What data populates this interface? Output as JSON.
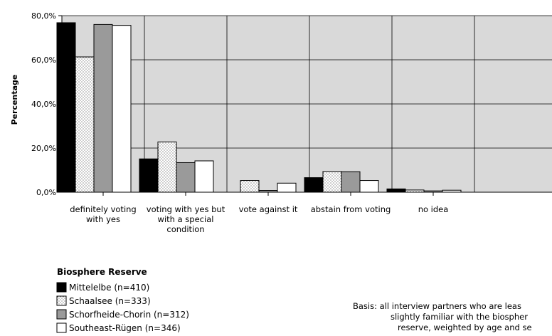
{
  "chart_data": {
    "type": "bar",
    "ylabel": "Percentage",
    "ylim": [
      0,
      80
    ],
    "yticks": [
      "0,0%",
      "20,0%",
      "40,0%",
      "60,0%",
      "80,0%"
    ],
    "grid": true,
    "categories": [
      [
        "definitely voting",
        "with yes"
      ],
      [
        "voting with yes but",
        "with a special",
        "condition"
      ],
      [
        "vote against it"
      ],
      [
        "abstain from voting"
      ],
      [
        "no idea"
      ]
    ],
    "series": [
      {
        "name": "Mittelelbe (n=410)",
        "values": [
          76.8,
          15.1,
          0.0,
          6.6,
          1.5
        ],
        "fill": "#000000",
        "pattern": "solid"
      },
      {
        "name": "Schaalsee (n=333)",
        "values": [
          61.3,
          22.8,
          5.3,
          9.4,
          1.0
        ],
        "fill": "#ffffff",
        "pattern": "dots"
      },
      {
        "name": "Schorfheide-Chorin (n=312)",
        "values": [
          76.0,
          13.4,
          0.8,
          9.3,
          0.6
        ],
        "fill": "#9a9a9a",
        "pattern": "solid"
      },
      {
        "name": "Southeast-Rügen (n=346)",
        "values": [
          75.6,
          14.2,
          4.1,
          5.3,
          0.9
        ],
        "fill": "#ffffff",
        "pattern": "solid"
      }
    ],
    "legend": {
      "title": "Biosphere Reserve",
      "position": "bottom-left"
    },
    "plot_background": "#d9d9d9",
    "note": [
      "Basis:  all interview partners who are leas",
      "slightly familiar with the biospher",
      "reserve, weighted by age and se"
    ]
  }
}
